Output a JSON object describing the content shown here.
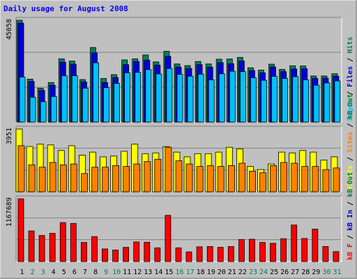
{
  "chart_data": {
    "type": "bar",
    "title": "Daily usage for August 2008",
    "categories": [
      "1",
      "2",
      "3",
      "4",
      "5",
      "6",
      "7",
      "8",
      "9",
      "10",
      "11",
      "12",
      "13",
      "14",
      "15",
      "16",
      "17",
      "18",
      "19",
      "20",
      "21",
      "22",
      "23",
      "24",
      "25",
      "26",
      "27",
      "28",
      "29",
      "30",
      "31"
    ],
    "weekend_days": [
      "2",
      "3",
      "9",
      "10",
      "16",
      "17",
      "23",
      "24",
      "30",
      "31"
    ],
    "panels": [
      {
        "max_label": "45058",
        "ylim": [
          0,
          45058
        ],
        "legend": [
          "Pages",
          "Files",
          "Hits"
        ],
        "series": [
          {
            "name": "Hits",
            "color": "#00805c",
            "values": [
              45058,
              19000,
              15000,
              17500,
              28000,
              27000,
              18800,
              33000,
              19300,
              21000,
              27500,
              28000,
              29700,
              26600,
              31300,
              25700,
              25000,
              26800,
              25700,
              27800,
              27900,
              28600,
              24000,
              23000,
              25600,
              23300,
              24900,
              24800,
              20400,
              20400,
              21400
            ]
          },
          {
            "name": "Files",
            "color": "#0000d8",
            "values": [
              43800,
              18000,
              14000,
              16300,
              26500,
              25600,
              17800,
              30600,
              17500,
              19700,
              25400,
              26800,
              27400,
              25200,
              29100,
              24300,
              23700,
              25400,
              24300,
              26300,
              25800,
              27000,
              22800,
              21800,
              24400,
              22300,
              23500,
              23600,
              19300,
              19400,
              20300
            ]
          },
          {
            "name": "Pages",
            "color": "#00c0ff",
            "values": [
              19900,
              11000,
              9000,
              11300,
              20500,
              20500,
              15000,
              26200,
              15200,
              17100,
              21800,
              22000,
              23200,
              21300,
              23700,
              21100,
              20300,
              21200,
              18700,
              21400,
              22500,
              22300,
              19600,
              18500,
              20200,
              19300,
              20100,
              18700,
              16300,
              17300,
              18200
            ]
          }
        ]
      },
      {
        "max_label": "3951",
        "ylim": [
          0,
          3951
        ],
        "legend": [
          "Visits",
          "Sites",
          "kB Out"
        ],
        "series": [
          {
            "name": "Visits",
            "color": "#ffff00",
            "values": [
              3951,
              2850,
              3000,
              2950,
              2600,
              2900,
              2300,
              2500,
              2200,
              2250,
              2550,
              3000,
              2400,
              2450,
              2850,
              2500,
              2200,
              2400,
              2400,
              2500,
              2800,
              2700,
              1600,
              1400,
              1750,
              2500,
              2450,
              2600,
              2500,
              2000,
              2200
            ]
          },
          {
            "name": "Sites",
            "color": "#ff8000",
            "values": [
              2900,
              1700,
              1550,
              1850,
              1700,
              1750,
              1150,
              1550,
              1550,
              1650,
              1600,
              1750,
              1900,
              2050,
              2800,
              1950,
              1750,
              1600,
              1650,
              1600,
              1650,
              1800,
              1300,
              1200,
              1650,
              1850,
              1800,
              1600,
              1600,
              1400,
              1500
            ]
          }
        ]
      },
      {
        "max_label": "1167689",
        "ylim": [
          0,
          1167689
        ],
        "legend": [
          "kB F",
          "kB In",
          "kB Out"
        ],
        "series": [
          {
            "name": "kB F",
            "color": "#ff0000",
            "values": [
              1167689,
              570000,
              485000,
              525000,
              725000,
              710000,
              355000,
              465000,
              235000,
              215000,
              265000,
              365000,
              360000,
              255000,
              860000,
              255000,
              180000,
              275000,
              280000,
              265000,
              280000,
              410000,
              415000,
              355000,
              340000,
              425000,
              680000,
              430000,
              605000,
              280000,
              185000
            ]
          }
        ]
      }
    ]
  },
  "legend_colors": {
    "Pages": "#00c0ff",
    "Files": "#0000d8",
    "Hits": "#00805c",
    "Visits": "#ffff00",
    "Sites": "#ff8000",
    "kB Out": "#008040",
    "kB In": "#0000d8",
    "kB F": "#ff0000",
    "separator": "#000000"
  },
  "colors": {
    "background": "#c0c0c0",
    "title": "#0000ff",
    "weekday_label": "#000000",
    "weekend_label": "#00805c",
    "panel": "#c0c0c0"
  }
}
